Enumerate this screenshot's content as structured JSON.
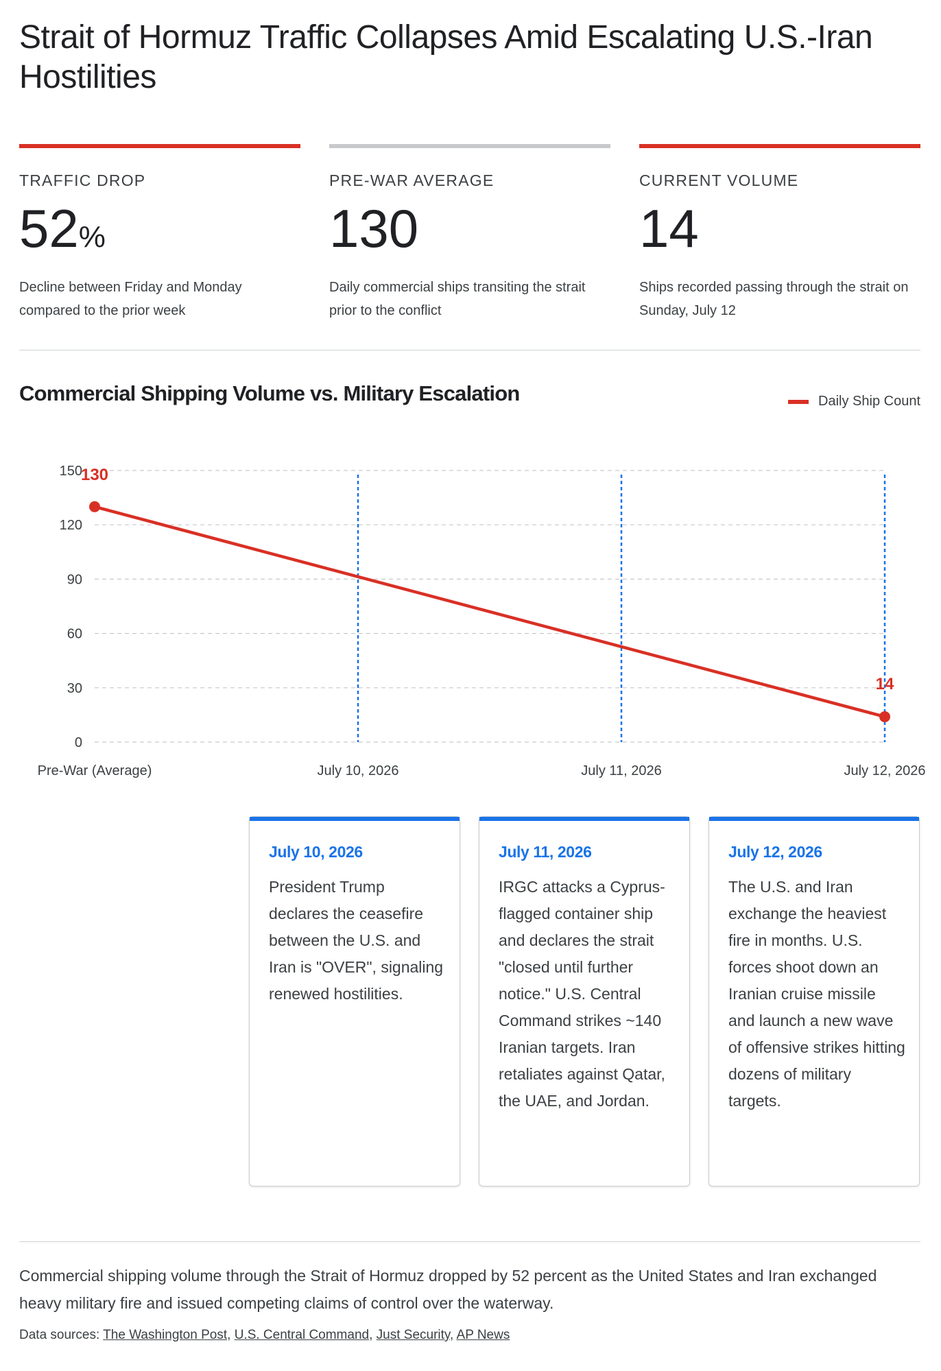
{
  "title": "Strait of Hormuz Traffic Collapses Amid Escalating U.S.-Iran Hostilities",
  "stats": [
    {
      "label": "TRAFFIC DROP",
      "value": "52",
      "unit": "%",
      "desc": "Decline between Friday and Monday compared to the prior week",
      "bar_color": "#d93025"
    },
    {
      "label": "PRE-WAR AVERAGE",
      "value": "130",
      "unit": "",
      "desc": "Daily commercial ships transiting the strait prior to the conflict",
      "bar_color": "#c8c9cc"
    },
    {
      "label": "CURRENT VOLUME",
      "value": "14",
      "unit": "",
      "desc": "Ships recorded passing through the strait on Sunday, July 12",
      "bar_color": "#d93025"
    }
  ],
  "chart_title": "Commercial Shipping Volume vs. Military Escalation",
  "legend_label": "Daily Ship Count",
  "colors": {
    "line": "#d93025",
    "event": "#1a73e8",
    "grid": "#c8c9cc"
  },
  "chart_data": {
    "type": "line",
    "title": "Commercial Shipping Volume vs. Military Escalation",
    "xlabel": "",
    "ylabel": "",
    "categories": [
      "Pre-War (Average)",
      "July 10, 2026",
      "July 11, 2026",
      "July 12, 2026"
    ],
    "series": [
      {
        "name": "Daily Ship Count",
        "points": [
          {
            "x": "Pre-War (Average)",
            "y": 130
          },
          {
            "x": "July 12, 2026",
            "y": 14
          }
        ]
      }
    ],
    "data_labels": [
      {
        "x": "Pre-War (Average)",
        "text": "130"
      },
      {
        "x": "July 12, 2026",
        "text": "14"
      }
    ],
    "event_lines": [
      "July 10, 2026",
      "July 11, 2026",
      "July 12, 2026"
    ],
    "ylim": [
      0,
      150
    ],
    "yticks": [
      0,
      30,
      60,
      90,
      120,
      150
    ],
    "grid": true,
    "legend": "top-right"
  },
  "events": [
    {
      "date": "July 10, 2026",
      "text": "President Trump declares the ceasefire between the U.S. and Iran is \"OVER\", signaling renewed hostilities."
    },
    {
      "date": "July 11, 2026",
      "text": "IRGC attacks a Cyprus-flagged container ship and declares the strait \"closed until further notice.\" U.S. Central Command strikes ~140 Iranian targets. Iran retaliates against Qatar, the UAE, and Jordan."
    },
    {
      "date": "July 12, 2026",
      "text": "The U.S. and Iran exchange the heaviest fire in months. U.S. forces shoot down an Iranian cruise missile and launch a new wave of offensive strikes hitting dozens of military targets."
    }
  ],
  "summary": "Commercial shipping volume through the Strait of Hormuz dropped by 52 percent as the United States and Iran exchanged heavy military fire and issued competing claims of control over the waterway.",
  "sources_label": "Data sources:",
  "sources": [
    "The Washington Post",
    "U.S. Central Command",
    "Just Security",
    "AP News"
  ]
}
